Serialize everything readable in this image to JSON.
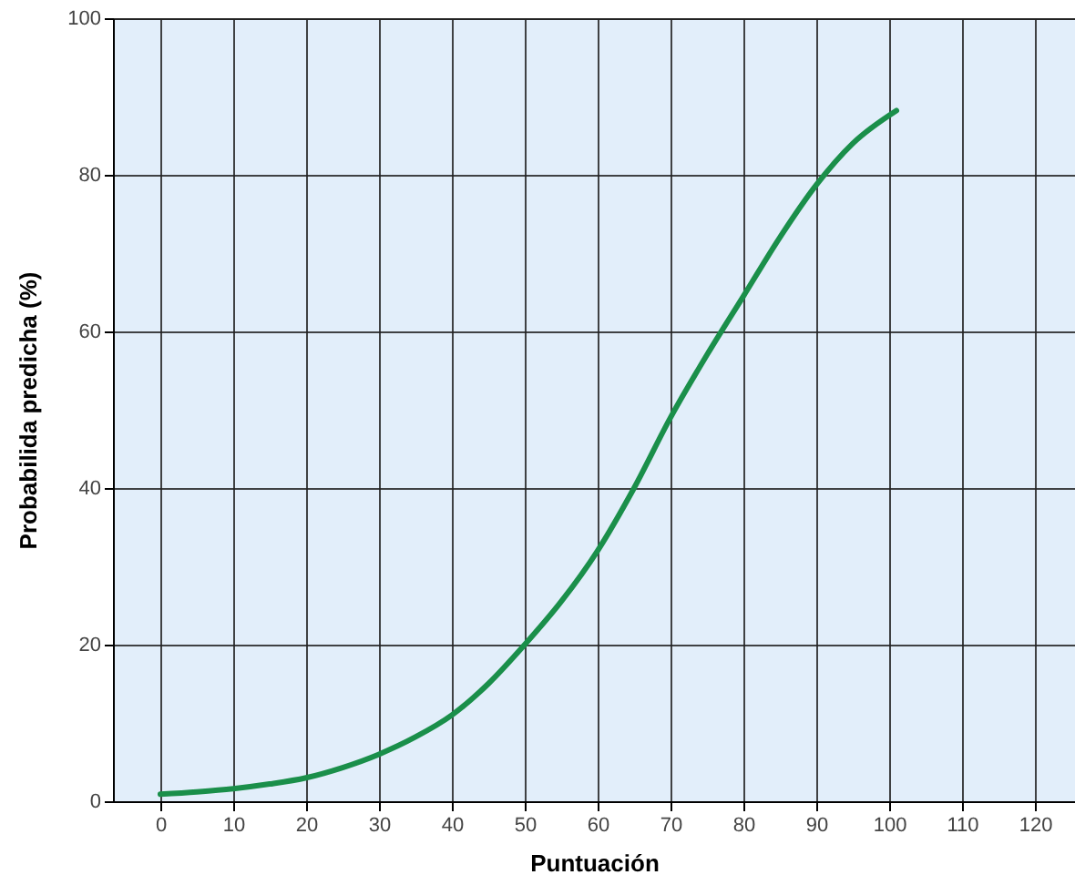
{
  "chart_data": {
    "type": "line",
    "xlabel": "Puntuación",
    "ylabel": "Probabilida predicha (%)",
    "x": [
      0,
      5,
      10,
      15,
      20,
      25,
      30,
      35,
      40,
      45,
      50,
      55,
      60,
      65,
      70,
      75,
      80,
      85,
      90,
      95,
      101
    ],
    "series": [
      {
        "color": "#1a8f4a",
        "values": [
          0.9,
          1.2,
          1.6,
          2.2,
          3,
          4.3,
          6,
          8.2,
          11,
          15,
          20,
          25.5,
          32,
          40,
          49,
          57,
          64.5,
          72,
          78.7,
          84,
          88.2
        ]
      }
    ],
    "xlim": [
      -6.5,
      125.5
    ],
    "xticks": [
      0,
      10,
      20,
      30,
      40,
      50,
      60,
      70,
      80,
      90,
      100,
      110,
      120
    ],
    "ylim": [
      0,
      100
    ],
    "yticks": [
      0,
      20,
      40,
      60,
      80,
      100
    ],
    "grid": true,
    "marker": "none",
    "line_style": "solid"
  }
}
